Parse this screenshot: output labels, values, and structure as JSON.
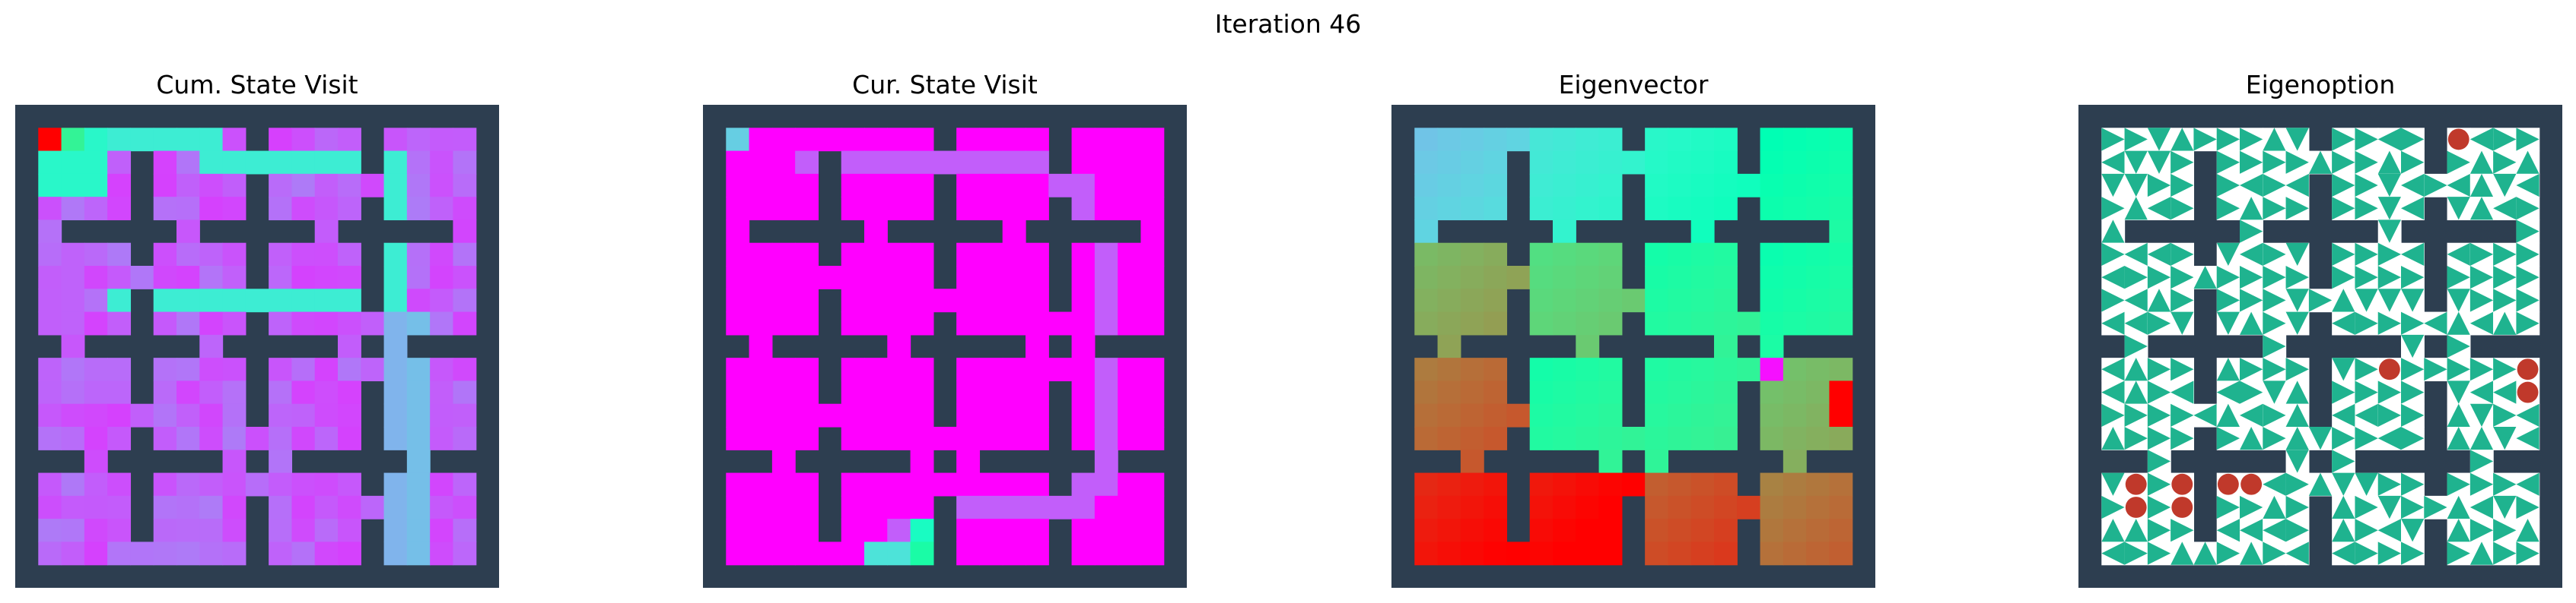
{
  "figure": {
    "suptitle": "Iteration 46"
  },
  "chart_data": [
    {
      "type": "heatmap",
      "title": "Cum. State Visit",
      "colormap": "rainbow",
      "wall_color": "#2d3e50"
    },
    {
      "type": "heatmap",
      "title": "Cur. State Visit",
      "colormap": "rainbow",
      "wall_color": "#2d3e50"
    },
    {
      "type": "heatmap",
      "title": "Eigenvector",
      "colormap": "rainbow",
      "wall_color": "#2d3e50"
    },
    {
      "type": "quiver",
      "title": "Eigenoption",
      "wall_color": "#2d3e50",
      "arrow_color": "#1fb38f",
      "terminal_color": "#c0392b"
    }
  ]
}
